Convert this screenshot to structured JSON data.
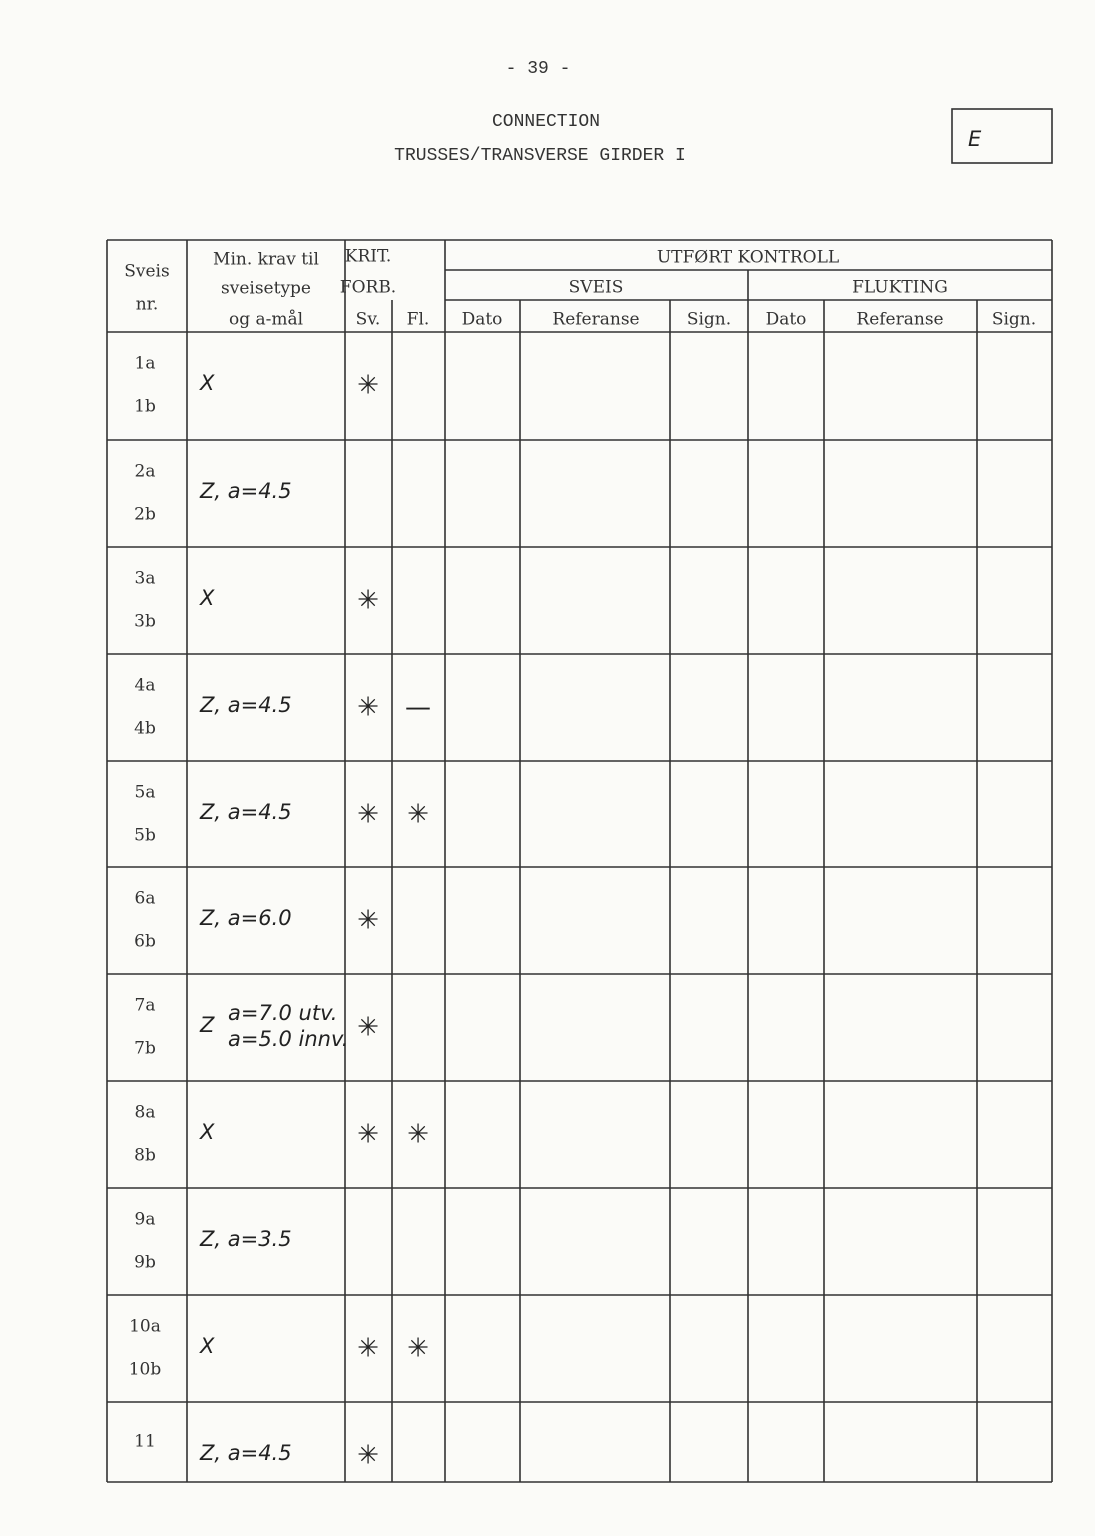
{
  "page_number": "- 39 -",
  "header": {
    "title": "CONNECTION",
    "subtitle": "TRUSSES/TRANSVERSE GIRDER I",
    "mark": "E"
  },
  "table": {
    "columns": {
      "weld_no": [
        "Sveis",
        "nr."
      ],
      "requirement": [
        "Min. krav til",
        "sveisetype",
        "og a-mål"
      ],
      "krit": [
        "KRIT.",
        "FORB."
      ],
      "sv": "Sv.",
      "fl": "Fl.",
      "control": "UTFØRT KONTROLL",
      "sveis": "SVEIS",
      "flukting": "FLUKTING",
      "sub": [
        "Dato",
        "Referanse",
        "Sign.",
        "Dato",
        "Referanse",
        "Sign."
      ]
    },
    "rows": [
      {
        "ids": [
          "1a",
          "1b"
        ],
        "requirement": "X",
        "sv": "✳"
      },
      {
        "ids": [
          "2a",
          "2b"
        ],
        "requirement": "Z, a=4.5"
      },
      {
        "ids": [
          "3a",
          "3b"
        ],
        "requirement": "X",
        "sv": "✳"
      },
      {
        "ids": [
          "4a",
          "4b"
        ],
        "requirement": "Z, a=4.5",
        "sv": "✳",
        "fl": "—"
      },
      {
        "ids": [
          "5a",
          "5b"
        ],
        "requirement": "Z, a=4.5",
        "sv": "✳",
        "fl": "✳"
      },
      {
        "ids": [
          "6a",
          "6b"
        ],
        "requirement": "Z, a=6.0",
        "sv": "✳"
      },
      {
        "ids": [
          "7a",
          "7b"
        ],
        "requirement": "Z",
        "requirement_lines": [
          "a=7.0 utv.",
          "a=5.0 innv."
        ],
        "sv": "✳"
      },
      {
        "ids": [
          "8a",
          "8b"
        ],
        "requirement": "X",
        "sv": "✳",
        "fl": "✳"
      },
      {
        "ids": [
          "9a",
          "9b"
        ],
        "requirement": "Z, a=3.5"
      },
      {
        "ids": [
          "10a",
          "10b"
        ],
        "requirement": "X",
        "sv": "✳",
        "fl": "✳"
      },
      {
        "ids": [
          "11"
        ],
        "requirement": "Z, a=4.5",
        "sv": "✳"
      }
    ]
  }
}
